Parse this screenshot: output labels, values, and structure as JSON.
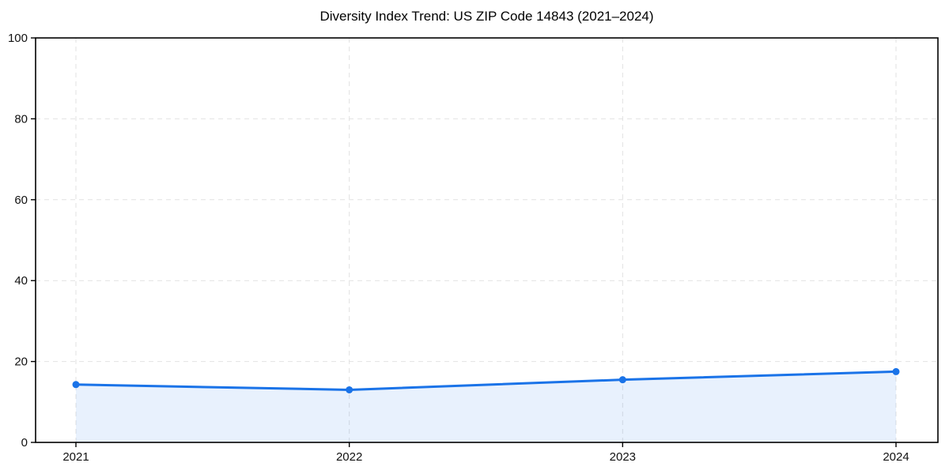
{
  "figure": {
    "background": "#ffffff"
  },
  "chart_data": {
    "type": "area",
    "title": "Diversity Index Trend: US ZIP Code 14843 (2021–2024)",
    "categories": [
      "2021",
      "2022",
      "2023",
      "2024"
    ],
    "x": [
      2021,
      2022,
      2023,
      2024
    ],
    "values": [
      14.3,
      13.0,
      15.5,
      17.5
    ],
    "xlabel": "",
    "ylabel": "",
    "ylim": [
      0,
      100
    ],
    "yticks": [
      0,
      20,
      40,
      60,
      80,
      100
    ],
    "grid": true,
    "grid_style": "dashed",
    "legend": false,
    "line_color": "#1a73e8",
    "marker": "circle",
    "marker_color": "#1a73e8",
    "fill_color": "#1a73e8",
    "fill_opacity": 0.1,
    "grid_color": "#e2e2e2",
    "spine_color": "#000000",
    "tick_label_color": "#111111",
    "title_color": "#000000"
  }
}
